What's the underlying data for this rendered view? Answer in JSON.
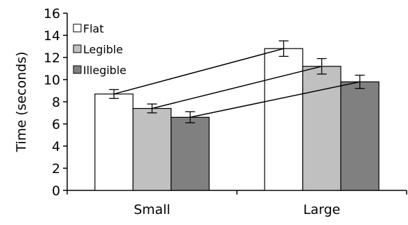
{
  "chart_data": {
    "type": "bar",
    "title": "",
    "xlabel": "",
    "ylabel": "Time (seconds)",
    "ylim": [
      0,
      16
    ],
    "yticks": [
      0,
      2,
      4,
      6,
      8,
      10,
      12,
      14,
      16
    ],
    "grid": false,
    "legend_position": "top-left",
    "categories": [
      "Small",
      "Large"
    ],
    "series": [
      {
        "name": "Flat",
        "values": [
          8.7,
          12.8
        ],
        "errors": [
          0.4,
          0.7
        ],
        "color": "#ffffff"
      },
      {
        "name": "Legible",
        "values": [
          7.4,
          11.2
        ],
        "errors": [
          0.4,
          0.7
        ],
        "color": "#c0c0c0"
      },
      {
        "name": "Illegible",
        "values": [
          6.6,
          9.8
        ],
        "errors": [
          0.5,
          0.6
        ],
        "color": "#808080"
      }
    ],
    "connectors": true
  }
}
